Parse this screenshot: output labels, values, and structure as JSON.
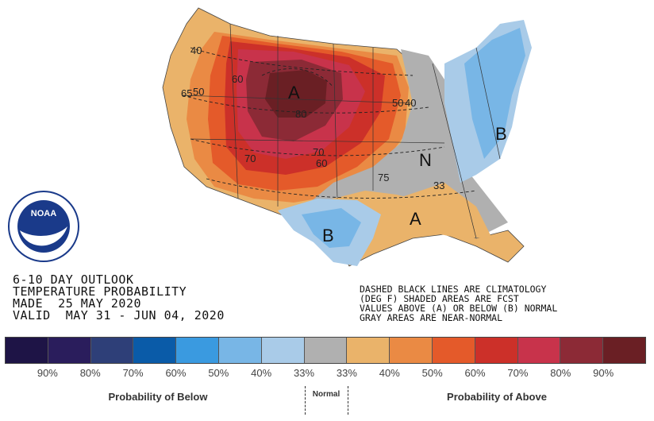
{
  "outlook": {
    "line1": "6-10 DAY OUTLOOK",
    "line2": "TEMPERATURE PROBABILITY",
    "line3": "MADE  25 MAY 2020",
    "line4": "VALID  MAY 31 - JUN 04, 2020"
  },
  "notes": {
    "line1": "DASHED BLACK LINES ARE CLIMATOLOGY",
    "line2": "(DEG F) SHADED AREAS ARE FCST",
    "line3": "VALUES ABOVE (A) OR BELOW (B) NORMAL",
    "line4": "GRAY AREAS ARE NEAR-NORMAL"
  },
  "map_labels": {
    "above": "A",
    "below": "B",
    "normal": "N",
    "contours": [
      "40",
      "50",
      "60",
      "65",
      "70",
      "75",
      "80",
      "33",
      "50",
      "40",
      "60",
      "70"
    ]
  },
  "legend": {
    "colors": [
      "#1e1446",
      "#2a1d5c",
      "#2e3f78",
      "#0a5ba8",
      "#3a9ae0",
      "#78b6e6",
      "#a9cbe8",
      "#b0b0b0",
      "#eab36a",
      "#ea8a44",
      "#e45a2a",
      "#cc3029",
      "#c8334b",
      "#8c2a36",
      "#6a1f24"
    ],
    "ticks": [
      "90%",
      "80%",
      "70%",
      "60%",
      "50%",
      "40%",
      "33%",
      "33%",
      "40%",
      "50%",
      "60%",
      "70%",
      "80%",
      "90%"
    ],
    "below_label": "Probability of Below",
    "normal_label": "Normal",
    "above_label": "Probability of Above"
  }
}
